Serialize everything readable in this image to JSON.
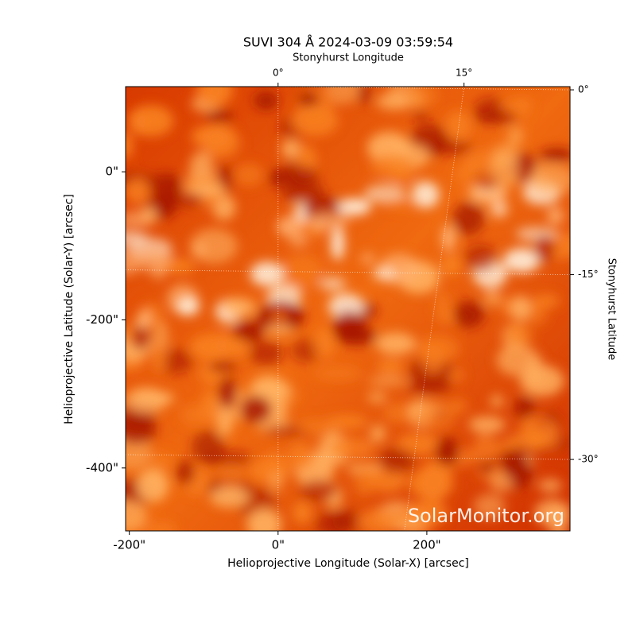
{
  "chart_data": {
    "type": "image",
    "title": "SUVI 304 Å 2024-03-09 03:59:54",
    "xlabel": "Helioprojective Longitude (Solar-X) [arcsec]",
    "ylabel": "Helioprojective Latitude (Solar-Y) [arcsec]",
    "x2label": "Stonyhurst Longitude",
    "y2label": "Stonyhurst Latitude",
    "xlim": [
      -205,
      392.5
    ],
    "ylim": [
      -485,
      115
    ],
    "xticks": [
      {
        "value": -200,
        "label": "-200\""
      },
      {
        "value": 0,
        "label": "0\""
      },
      {
        "value": 200,
        "label": "200\""
      }
    ],
    "yticks": [
      {
        "value": -400,
        "label": "-400\""
      },
      {
        "value": -200,
        "label": "-200\""
      },
      {
        "value": 0,
        "label": "0\""
      }
    ],
    "x2lim": [
      -12.3,
      23.55
    ],
    "x2ticks": [
      {
        "value": 0,
        "label": "0°"
      },
      {
        "value": 15,
        "label": "15°"
      }
    ],
    "y2lim": [
      -35.8,
      0.26
    ],
    "y2ticks": [
      {
        "value": 0,
        "label": "0°"
      },
      {
        "value": -15,
        "label": "-15°"
      },
      {
        "value": -30,
        "label": "-30°"
      }
    ],
    "annotation": "SolarMonitor.org"
  }
}
